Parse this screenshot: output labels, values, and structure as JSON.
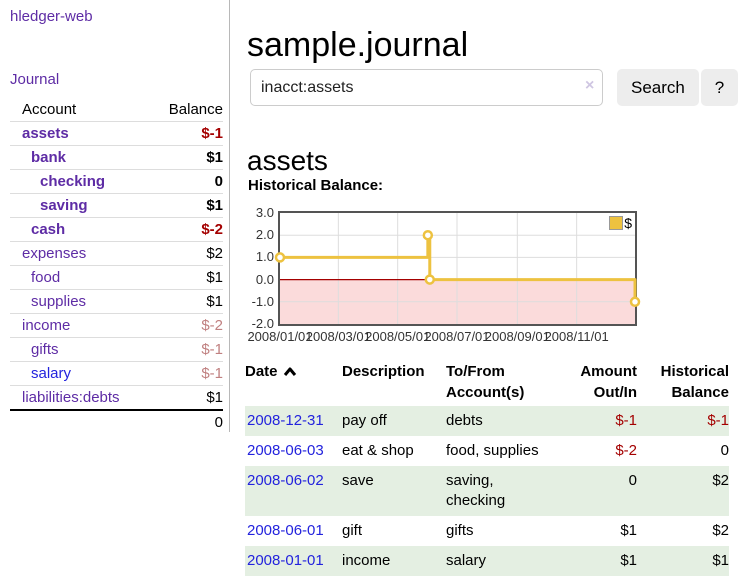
{
  "app": {
    "brand": "hledger-web",
    "nav_journal": "Journal"
  },
  "sidebar": {
    "header": {
      "account": "Account",
      "balance": "Balance"
    },
    "accounts": [
      {
        "name": "assets",
        "balance": "$-1",
        "level": 1
      },
      {
        "name": "bank",
        "balance": "$1",
        "level": 2
      },
      {
        "name": "checking",
        "balance": "0",
        "level": 3
      },
      {
        "name": "saving",
        "balance": "$1",
        "level": 3
      },
      {
        "name": "cash",
        "balance": "$-2",
        "level": 2
      },
      {
        "name": "expenses",
        "balance": "$2",
        "level": 1
      },
      {
        "name": "food",
        "balance": "$1",
        "level": 2
      },
      {
        "name": "supplies",
        "balance": "$1",
        "level": 2
      },
      {
        "name": "income",
        "balance": "$-2",
        "level": 1
      },
      {
        "name": "gifts",
        "balance": "$-1",
        "level": 2
      },
      {
        "name": "salary",
        "balance": "$-1",
        "level": 2
      },
      {
        "name": "liabilities:debts",
        "balance": "$1",
        "level": 1
      }
    ],
    "total": "0"
  },
  "header": {
    "title": "sample.journal"
  },
  "search": {
    "value": "inacct:assets",
    "clear_label": "×",
    "button_label": "Search",
    "help_label": "?"
  },
  "account_page": {
    "heading": "assets",
    "chart_label": "Historical Balance:"
  },
  "chart_data": {
    "type": "line",
    "title": "Historical Balance of assets",
    "step": "after",
    "series": [
      {
        "name": "$",
        "points": [
          {
            "x": "2008-01-01",
            "y": 1
          },
          {
            "x": "2008-06-01",
            "y": 2
          },
          {
            "x": "2008-06-03",
            "y": 0
          },
          {
            "x": "2008-12-31",
            "y": -1
          }
        ]
      }
    ],
    "legend": [
      {
        "label": "$",
        "color": "#edc240"
      }
    ],
    "legend_position": "top-right",
    "grid": true,
    "xlim": [
      "2008-01-01",
      "2008-12-31"
    ],
    "ylim": [
      -2,
      3
    ],
    "x_ticks": [
      {
        "date": "2008-01-01",
        "label": "2008/01/01"
      },
      {
        "date": "2008-03-01",
        "label": "2008/03/01"
      },
      {
        "date": "2008-05-01",
        "label": "2008/05/01"
      },
      {
        "date": "2008-07-01",
        "label": "2008/07/01"
      },
      {
        "date": "2008-09-01",
        "label": "2008/09/01"
      },
      {
        "date": "2008-11-01",
        "label": "2008/11/01"
      }
    ],
    "y_ticks": [
      {
        "value": 3,
        "label": "3.0"
      },
      {
        "value": 2,
        "label": "2.0"
      },
      {
        "value": 1,
        "label": "1.0"
      },
      {
        "value": 0,
        "label": "0.0"
      },
      {
        "value": -1,
        "label": "-1.0"
      },
      {
        "value": -2,
        "label": "-2.0"
      }
    ],
    "colors": {
      "series": "#edc240",
      "marker_fill": "#ffffff",
      "negative_region": "#fbdbdb",
      "zero_line": "#a40000",
      "grid_line": "#dddddd",
      "plot_border": "#545454"
    }
  },
  "table": {
    "headers": {
      "date": "Date",
      "description": "Description",
      "accounts_l1": "To/From",
      "accounts_l2": "Account(s)",
      "amount_l1": "Amount",
      "amount_l2": "Out/In",
      "balance_l1": "Historical",
      "balance_l2": "Balance"
    },
    "rows": [
      {
        "date": "2008-12-31",
        "description": "pay off",
        "accounts": "debts",
        "amount": "$-1",
        "balance": "$-1"
      },
      {
        "date": "2008-06-03",
        "description": "eat & shop",
        "accounts": "food, supplies",
        "amount": "$-2",
        "balance": "0"
      },
      {
        "date": "2008-06-02",
        "description": "save",
        "accounts": "saving, checking",
        "amount": "0",
        "balance": "$2"
      },
      {
        "date": "2008-06-01",
        "description": "gift",
        "accounts": "gifts",
        "amount": "$1",
        "balance": "$2"
      },
      {
        "date": "2008-01-01",
        "description": "income",
        "accounts": "salary",
        "amount": "$1",
        "balance": "$1"
      }
    ]
  },
  "colors": {
    "link_purple": "#5e2ca5",
    "link_blue": "#2323dd",
    "negative_strong": "#a40000",
    "negative_soft": "#c08080",
    "row_stripe_green": "#e4efe2",
    "button_bg": "#ededed"
  }
}
